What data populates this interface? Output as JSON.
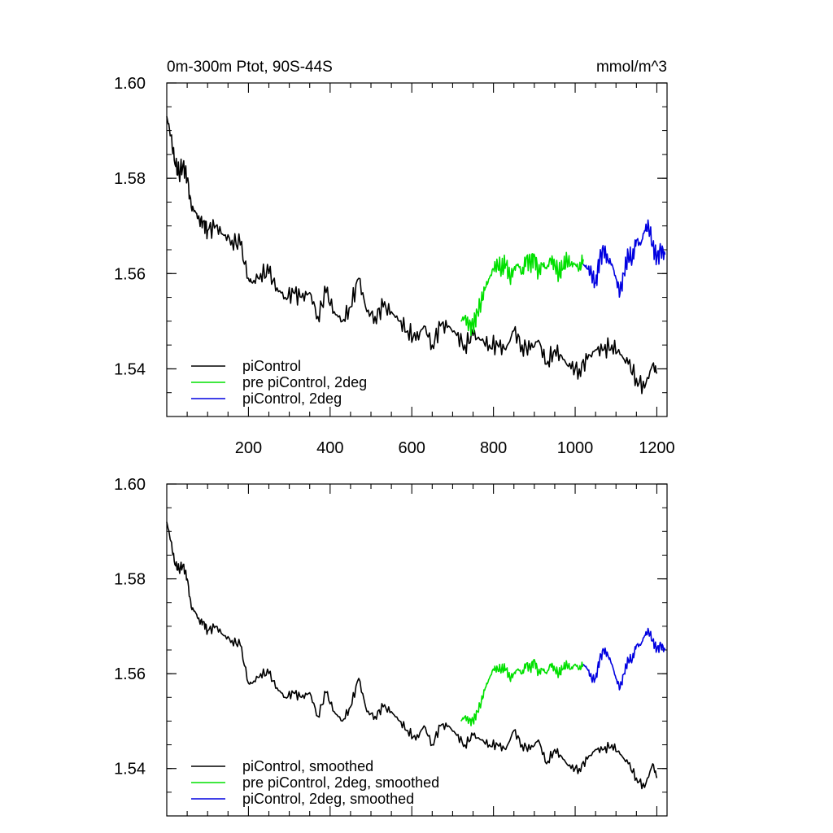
{
  "figure": {
    "title_left": "0m-300m Ptot, 90S-44S",
    "title_right": "mmol/m^3"
  },
  "chart_data": [
    {
      "type": "line",
      "panel": "top",
      "xlim": [
        0,
        1225
      ],
      "ylim": [
        1.53,
        1.6
      ],
      "xticks": [
        200,
        400,
        600,
        800,
        1000,
        1200
      ],
      "xtick_labels": [
        "200",
        "400",
        "600",
        "800",
        "1000",
        "1200"
      ],
      "yticks": [
        1.54,
        1.56,
        1.58,
        1.6
      ],
      "ytick_labels": [
        "1.54",
        "1.56",
        "1.58",
        "1.60"
      ],
      "legend_position": "bottom-left",
      "series": [
        {
          "name": "piControl",
          "color": "#000000",
          "x": [
            0,
            10,
            20,
            30,
            40,
            50,
            60,
            70,
            80,
            90,
            100,
            120,
            140,
            160,
            180,
            200,
            210,
            230,
            250,
            270,
            290,
            310,
            330,
            350,
            370,
            390,
            410,
            430,
            450,
            470,
            490,
            510,
            530,
            550,
            570,
            590,
            610,
            630,
            650,
            670,
            690,
            710,
            730,
            750,
            770,
            790,
            810,
            830,
            850,
            870,
            890,
            910,
            930,
            950,
            970,
            990,
            1010,
            1030,
            1050,
            1070,
            1090,
            1110,
            1130,
            1150,
            1170,
            1190,
            1200
          ],
          "y": [
            1.593,
            1.589,
            1.583,
            1.581,
            1.583,
            1.58,
            1.574,
            1.573,
            1.571,
            1.571,
            1.569,
            1.57,
            1.568,
            1.567,
            1.566,
            1.559,
            1.558,
            1.56,
            1.56,
            1.557,
            1.555,
            1.556,
            1.555,
            1.556,
            1.551,
            1.556,
            1.552,
            1.55,
            1.553,
            1.559,
            1.552,
            1.551,
            1.553,
            1.552,
            1.55,
            1.548,
            1.546,
            1.549,
            1.545,
            1.549,
            1.549,
            1.547,
            1.545,
            1.547,
            1.546,
            1.545,
            1.545,
            1.544,
            1.548,
            1.545,
            1.544,
            1.546,
            1.541,
            1.544,
            1.542,
            1.54,
            1.54,
            1.542,
            1.544,
            1.544,
            1.545,
            1.543,
            1.541,
            1.538,
            1.536,
            1.541,
            1.539
          ]
        },
        {
          "name": "pre piControl, 2deg",
          "color": "#00e000",
          "x": [
            720,
            730,
            740,
            750,
            760,
            770,
            780,
            790,
            800,
            810,
            820,
            830,
            840,
            850,
            860,
            870,
            880,
            890,
            900,
            910,
            920,
            930,
            940,
            950,
            960,
            970,
            980,
            990,
            1000,
            1010,
            1020
          ],
          "y": [
            1.55,
            1.551,
            1.549,
            1.549,
            1.552,
            1.554,
            1.557,
            1.559,
            1.561,
            1.562,
            1.561,
            1.562,
            1.559,
            1.561,
            1.562,
            1.56,
            1.563,
            1.562,
            1.564,
            1.56,
            1.562,
            1.561,
            1.563,
            1.562,
            1.56,
            1.561,
            1.563,
            1.562,
            1.562,
            1.561,
            1.563
          ]
        },
        {
          "name": "piControl, 2deg",
          "color": "#0000e0",
          "x": [
            1020,
            1030,
            1040,
            1050,
            1060,
            1070,
            1080,
            1090,
            1100,
            1110,
            1120,
            1130,
            1140,
            1150,
            1160,
            1170,
            1180,
            1190,
            1200,
            1210,
            1220
          ],
          "y": [
            1.562,
            1.561,
            1.56,
            1.558,
            1.563,
            1.565,
            1.563,
            1.562,
            1.559,
            1.556,
            1.56,
            1.564,
            1.563,
            1.567,
            1.566,
            1.569,
            1.57,
            1.566,
            1.563,
            1.565,
            1.564
          ]
        }
      ]
    },
    {
      "type": "line",
      "panel": "bottom",
      "xlim": [
        0,
        1225
      ],
      "ylim": [
        1.53,
        1.6
      ],
      "xticks": [
        200,
        400,
        600,
        800,
        1000,
        1200
      ],
      "yticks": [
        1.54,
        1.56,
        1.58,
        1.6
      ],
      "ytick_labels": [
        "1.54",
        "1.56",
        "1.58",
        "1.60"
      ],
      "legend_position": "bottom-left",
      "series": [
        {
          "name": "piControl, smoothed",
          "color": "#000000",
          "x": [
            0,
            10,
            20,
            30,
            40,
            50,
            60,
            70,
            80,
            90,
            100,
            120,
            140,
            160,
            180,
            200,
            210,
            230,
            250,
            270,
            290,
            310,
            330,
            350,
            370,
            390,
            410,
            430,
            450,
            470,
            490,
            510,
            530,
            550,
            570,
            590,
            610,
            630,
            650,
            670,
            690,
            710,
            730,
            750,
            770,
            790,
            810,
            830,
            850,
            870,
            890,
            910,
            930,
            950,
            970,
            990,
            1010,
            1030,
            1050,
            1070,
            1090,
            1110,
            1130,
            1150,
            1170,
            1190,
            1200
          ],
          "y": [
            1.592,
            1.588,
            1.583,
            1.582,
            1.583,
            1.58,
            1.574,
            1.573,
            1.571,
            1.571,
            1.569,
            1.57,
            1.568,
            1.567,
            1.566,
            1.558,
            1.558,
            1.56,
            1.56,
            1.557,
            1.555,
            1.556,
            1.555,
            1.556,
            1.551,
            1.556,
            1.552,
            1.55,
            1.553,
            1.559,
            1.552,
            1.551,
            1.553,
            1.552,
            1.55,
            1.548,
            1.546,
            1.549,
            1.545,
            1.549,
            1.549,
            1.547,
            1.545,
            1.547,
            1.546,
            1.545,
            1.545,
            1.544,
            1.548,
            1.545,
            1.544,
            1.546,
            1.541,
            1.544,
            1.542,
            1.54,
            1.54,
            1.542,
            1.544,
            1.544,
            1.545,
            1.543,
            1.541,
            1.538,
            1.536,
            1.541,
            1.538
          ]
        },
        {
          "name": "pre piControl, 2deg, smoothed",
          "color": "#00e000",
          "x": [
            720,
            730,
            740,
            750,
            760,
            770,
            780,
            790,
            800,
            810,
            820,
            830,
            840,
            850,
            860,
            870,
            880,
            890,
            900,
            910,
            920,
            930,
            940,
            950,
            960,
            970,
            980,
            990,
            1000,
            1010,
            1020
          ],
          "y": [
            1.55,
            1.551,
            1.55,
            1.55,
            1.552,
            1.554,
            1.557,
            1.559,
            1.561,
            1.561,
            1.561,
            1.561,
            1.559,
            1.56,
            1.561,
            1.56,
            1.562,
            1.561,
            1.563,
            1.56,
            1.561,
            1.56,
            1.562,
            1.561,
            1.56,
            1.561,
            1.562,
            1.561,
            1.562,
            1.561,
            1.562
          ]
        },
        {
          "name": "piControl, 2deg, smoothed",
          "color": "#0000e0",
          "x": [
            1020,
            1030,
            1040,
            1050,
            1060,
            1070,
            1080,
            1090,
            1100,
            1110,
            1120,
            1130,
            1140,
            1150,
            1160,
            1170,
            1180,
            1190,
            1200,
            1210,
            1220
          ],
          "y": [
            1.562,
            1.561,
            1.559,
            1.559,
            1.563,
            1.565,
            1.564,
            1.562,
            1.559,
            1.557,
            1.56,
            1.563,
            1.563,
            1.566,
            1.566,
            1.568,
            1.569,
            1.567,
            1.565,
            1.566,
            1.565
          ]
        }
      ]
    }
  ]
}
